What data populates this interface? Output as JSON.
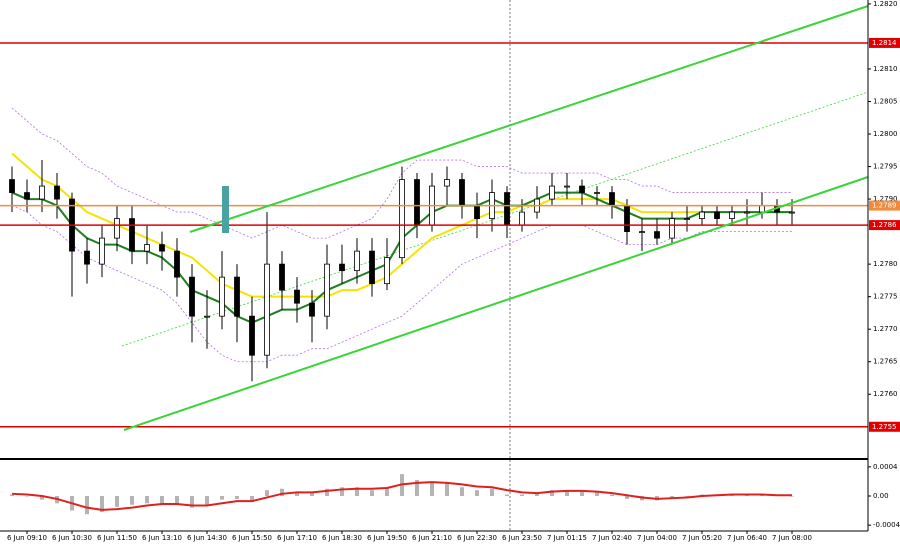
{
  "chart_data": [
    {
      "type": "candlestick",
      "categories": [
        null,
        "6 Jun 09:10",
        null,
        null,
        "6 Jun 10:30",
        null,
        null,
        "6 Jun 11:50",
        null,
        null,
        "6 Jun 13:10",
        null,
        null,
        "6 Jun 14:30",
        null,
        null,
        "6 Jun 15:50",
        null,
        null,
        "6 Jun 17:10",
        null,
        null,
        "6 Jun 18:30",
        null,
        null,
        "6 Jun 19:50",
        null,
        null,
        "6 Jun 21:10",
        null,
        null,
        "6 Jun 22:30",
        null,
        null,
        "6 Jun 23:50",
        null,
        null,
        "7 Jun 01:15",
        null,
        null,
        "7 Jun 02:40",
        null,
        null,
        "7 Jun 04:00",
        null,
        null,
        "7 Jun 05:20",
        null,
        null,
        "7 Jun 06:40",
        null,
        null,
        "7 Jun 08:00"
      ],
      "open": [
        1.2793,
        1.2791,
        1.279,
        1.2792,
        1.279,
        1.2782,
        1.278,
        1.2784,
        1.2787,
        1.2782,
        1.2783,
        1.2782,
        1.2778,
        1.2772,
        1.2772,
        1.2778,
        1.2772,
        1.2766,
        1.278,
        1.2776,
        1.2774,
        1.2772,
        1.278,
        1.2779,
        1.2782,
        1.2777,
        1.2781,
        1.2793,
        1.2786,
        1.2792,
        1.2793,
        1.2789,
        1.2787,
        1.2791,
        1.2786,
        1.2788,
        1.279,
        1.2792,
        1.2792,
        1.2791,
        1.2791,
        1.2789,
        1.2785,
        1.2785,
        1.2784,
        1.2787,
        1.2787,
        1.2788,
        1.2787,
        1.2788,
        1.2788,
        1.2789,
        1.2788
      ],
      "high": [
        1.2795,
        1.2793,
        1.2796,
        1.2794,
        1.2791,
        1.2784,
        1.2786,
        1.2789,
        1.2789,
        1.2786,
        1.2785,
        1.2784,
        1.278,
        1.2776,
        1.2782,
        1.278,
        1.2775,
        1.2788,
        1.2782,
        1.2778,
        1.2776,
        1.2783,
        1.2783,
        1.2784,
        1.2784,
        1.2784,
        1.2795,
        1.2794,
        1.2794,
        1.2795,
        1.2794,
        1.2791,
        1.2793,
        1.2792,
        1.279,
        1.2792,
        1.2794,
        1.2794,
        1.2793,
        1.2792,
        1.2792,
        1.279,
        1.2787,
        1.2787,
        1.2788,
        1.2789,
        1.2789,
        1.2789,
        1.2789,
        1.279,
        1.2791,
        1.279,
        1.279
      ],
      "low": [
        1.2788,
        1.2788,
        1.2788,
        1.2787,
        1.2775,
        1.2777,
        1.2778,
        1.2782,
        1.278,
        1.278,
        1.2779,
        1.2775,
        1.2768,
        1.2767,
        1.277,
        1.2768,
        1.2762,
        1.2764,
        1.2773,
        1.2771,
        1.2768,
        1.277,
        1.2777,
        1.2777,
        1.2775,
        1.2776,
        1.278,
        1.2784,
        1.2785,
        1.2789,
        1.2787,
        1.2784,
        1.2785,
        1.2784,
        1.2785,
        1.2787,
        1.2789,
        1.279,
        1.2789,
        1.2789,
        1.2787,
        1.2783,
        1.2782,
        1.2783,
        1.2783,
        1.2785,
        1.2786,
        1.2786,
        1.2786,
        1.2786,
        1.2787,
        1.2786,
        1.2786
      ],
      "close": [
        1.2791,
        1.279,
        1.2792,
        1.279,
        1.2782,
        1.278,
        1.2784,
        1.2787,
        1.2782,
        1.2783,
        1.2782,
        1.2778,
        1.2772,
        1.2772,
        1.2778,
        1.2772,
        1.2766,
        1.278,
        1.2776,
        1.2774,
        1.2772,
        1.278,
        1.2779,
        1.2782,
        1.2777,
        1.2781,
        1.2793,
        1.2786,
        1.2792,
        1.2793,
        1.2789,
        1.2787,
        1.2791,
        1.2786,
        1.2788,
        1.279,
        1.2792,
        1.2792,
        1.2791,
        1.2791,
        1.2789,
        1.2785,
        1.2785,
        1.2784,
        1.2787,
        1.2787,
        1.2788,
        1.2787,
        1.2788,
        1.2788,
        1.2789,
        1.2788,
        1.2788
      ],
      "series": [
        {
          "color": "#b46ee8",
          "dashed": true,
          "values": [
            1.2804,
            1.2802,
            1.28,
            1.2799,
            1.2797,
            1.2795,
            1.2794,
            1.2792,
            1.2791,
            1.279,
            1.2789,
            1.2788,
            1.2788,
            1.2787,
            1.2786,
            1.2785,
            1.2784,
            1.2785,
            1.2786,
            1.2785,
            1.2784,
            1.2784,
            1.2785,
            1.2786,
            1.2787,
            1.279,
            1.2794,
            1.2796,
            1.2796,
            1.2796,
            1.2796,
            1.2795,
            1.2795,
            1.2795,
            1.2794,
            1.2794,
            1.2794,
            1.2794,
            1.2794,
            1.2794,
            1.2793,
            1.2793,
            1.2792,
            1.2792,
            1.2791,
            1.2791,
            1.2791,
            1.2791,
            1.2791,
            1.2791,
            1.2791,
            1.2791,
            1.2791
          ]
        },
        {
          "color": "#b46ee8",
          "dashed": true,
          "values": [
            1.2789,
            1.2788,
            1.2786,
            1.2785,
            1.2783,
            1.2781,
            1.278,
            1.2779,
            1.2778,
            1.2777,
            1.2776,
            1.2774,
            1.2771,
            1.2768,
            1.2766,
            1.2765,
            1.2765,
            1.2765,
            1.2766,
            1.2766,
            1.2767,
            1.2767,
            1.2768,
            1.2769,
            1.277,
            1.2771,
            1.2772,
            1.2774,
            1.2776,
            1.2778,
            1.278,
            1.2781,
            1.2782,
            1.2783,
            1.2784,
            1.2785,
            1.2786,
            1.2786,
            1.2786,
            1.2785,
            1.2784,
            1.2783,
            1.2783,
            1.2783,
            1.2784,
            1.2784,
            1.2785,
            1.2785,
            1.2785,
            1.2785,
            1.2785,
            1.2785,
            1.2785
          ]
        },
        {
          "color": "#f5e400",
          "dashed": false,
          "values": [
            1.2797,
            1.2795,
            1.2793,
            1.2792,
            1.279,
            1.2788,
            1.2787,
            1.2786,
            1.2785,
            1.2784,
            1.2783,
            1.2782,
            1.2781,
            1.2779,
            1.2777,
            1.2776,
            1.2775,
            1.2775,
            1.2775,
            1.2775,
            1.2775,
            1.2775,
            1.2776,
            1.2776,
            1.2777,
            1.2778,
            1.278,
            1.2782,
            1.2784,
            1.2785,
            1.2786,
            1.2787,
            1.2788,
            1.2788,
            1.2789,
            1.2789,
            1.279,
            1.279,
            1.279,
            1.279,
            1.279,
            1.2789,
            1.2788,
            1.2788,
            1.2788,
            1.2788,
            1.2788,
            1.2788,
            1.2788,
            1.2788,
            1.2788,
            1.2788,
            1.2788
          ]
        },
        {
          "color": "#1e7d1e",
          "dashed": false,
          "values": [
            1.2791,
            1.279,
            1.279,
            1.2789,
            1.2786,
            1.2784,
            1.2783,
            1.2783,
            1.2782,
            1.2782,
            1.2781,
            1.2779,
            1.2776,
            1.2775,
            1.2774,
            1.2772,
            1.2771,
            1.2772,
            1.2773,
            1.2773,
            1.2774,
            1.2776,
            1.2777,
            1.2778,
            1.2779,
            1.278,
            1.2784,
            1.2786,
            1.2788,
            1.2789,
            1.2789,
            1.2789,
            1.279,
            1.2789,
            1.2789,
            1.279,
            1.2791,
            1.2791,
            1.2791,
            1.279,
            1.2789,
            1.2788,
            1.2787,
            1.2787,
            1.2787,
            1.2787,
            1.2788,
            1.2788,
            1.2788,
            1.2788,
            1.2788,
            1.2788,
            1.2788
          ]
        }
      ],
      "ylim": [
        1.27502,
        1.28206
      ],
      "yticks": [
        {
          "value": 1.282,
          "label": "1.2820"
        },
        {
          "value": 1.281,
          "label": "1.2810"
        },
        1.2805,
        {
          "value": 1.28,
          "label": "1.2800"
        },
        1.2795,
        {
          "value": 1.279,
          "label": "1.2790"
        },
        {
          "value": 1.278,
          "label": "1.2780"
        },
        1.2775,
        {
          "value": 1.277,
          "label": "1.2770"
        },
        1.2765,
        {
          "value": 1.276,
          "label": "1.2760"
        }
      ],
      "levels": [
        {
          "value": 1.2814,
          "color": "#e00000"
        },
        {
          "value": 1.2789,
          "color": "#f08a3c"
        },
        {
          "value": 1.2786,
          "color": "#e00000"
        },
        {
          "value": 1.2755,
          "color": "#e00000"
        }
      ]
    },
    {
      "type": "macd",
      "values": [
        2e-05,
        0,
        -5e-05,
        -0.0001,
        -0.0002,
        -0.00025,
        -0.00022,
        -0.00015,
        -0.00012,
        -0.0001,
        -0.0001,
        -0.00012,
        -0.00016,
        -0.00012,
        -5e-05,
        -4e-05,
        -8e-05,
        8e-05,
        0.0001,
        6e-05,
        4e-05,
        0.0001,
        0.00012,
        0.00012,
        8e-05,
        0.00012,
        0.0003,
        0.00022,
        0.0002,
        0.00018,
        0.00012,
        8e-05,
        0.0001,
        2e-05,
        2e-05,
        4e-05,
        8e-05,
        8e-05,
        6e-05,
        5e-05,
        2e-05,
        -4e-05,
        -6e-05,
        -6e-05,
        -2e-05,
        0,
        2e-05,
        2e-05,
        2e-05,
        2e-05,
        2e-05,
        1e-05,
        0
      ],
      "color": "#b4b4b4",
      "series": [
        {
          "color": "#e02020",
          "values": [
            3e-05,
            2e-05,
            0,
            -4e-05,
            -0.0001,
            -0.00016,
            -0.00019,
            -0.00018,
            -0.00016,
            -0.00013,
            -0.00011,
            -0.00011,
            -0.00013,
            -0.00013,
            -0.0001,
            -7e-05,
            -7e-05,
            -2e-05,
            3e-05,
            5e-05,
            5e-05,
            7e-05,
            9e-05,
            0.0001,
            0.0001,
            0.00011,
            0.00016,
            0.00018,
            0.00019,
            0.00018,
            0.00016,
            0.00013,
            0.00012,
            8e-05,
            5e-05,
            4e-05,
            6e-05,
            7e-05,
            7e-05,
            6e-05,
            4e-05,
            1e-05,
            -2e-05,
            -4e-05,
            -3e-05,
            -2e-05,
            0,
            1e-05,
            2e-05,
            2e-05,
            2e-05,
            1e-05,
            1e-05
          ]
        }
      ],
      "ylim": [
        -0.00048,
        0.00048
      ],
      "yticks": [
        0.0004,
        {
          "value": 0,
          "label": "0.00"
        },
        -0.0004
      ]
    }
  ]
}
